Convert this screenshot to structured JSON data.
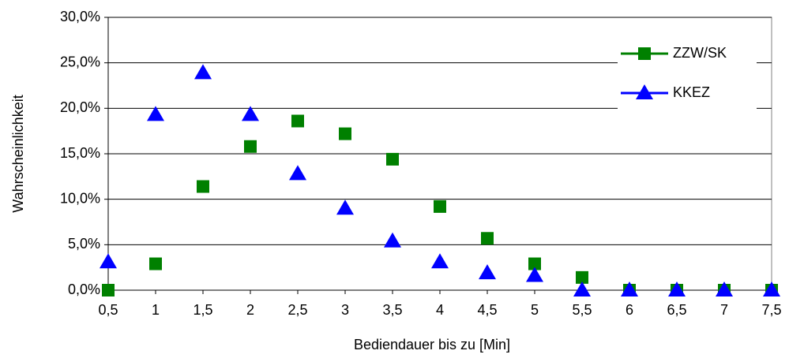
{
  "chart_data": {
    "type": "line",
    "x_label": "Bediendauer bis zu [Min]",
    "y_label": "Wahrscheinlichkeit",
    "categories": [
      "0,5",
      "1",
      "1,5",
      "2",
      "2,5",
      "3",
      "3,5",
      "4",
      "4,5",
      "5",
      "5,5",
      "6",
      "6,5",
      "7",
      "7,5"
    ],
    "series": [
      {
        "name": "ZZW/SK",
        "color": "#008000",
        "marker": "square",
        "values": [
          0,
          2.9,
          11.4,
          15.8,
          18.6,
          17.2,
          14.4,
          9.2,
          5.7,
          2.9,
          1.4,
          0,
          0,
          0,
          0
        ]
      },
      {
        "name": "KKEZ",
        "color": "#0000ff",
        "marker": "triangle",
        "values": [
          3.1,
          19.3,
          23.9,
          19.3,
          12.8,
          9.0,
          5.4,
          3.1,
          1.9,
          1.6,
          0,
          0,
          0,
          0,
          0
        ]
      }
    ],
    "ylim": [
      0,
      30
    ],
    "yticks": [
      {
        "value": 0,
        "label": "0,0%"
      },
      {
        "value": 5,
        "label": "5,0%"
      },
      {
        "value": 10,
        "label": "10,0%"
      },
      {
        "value": 15,
        "label": "15,0%"
      },
      {
        "value": 20,
        "label": "20,0%"
      },
      {
        "value": 25,
        "label": "25,0%"
      },
      {
        "value": 30,
        "label": "30,0%"
      }
    ],
    "grid": true,
    "legend": "upper right"
  }
}
